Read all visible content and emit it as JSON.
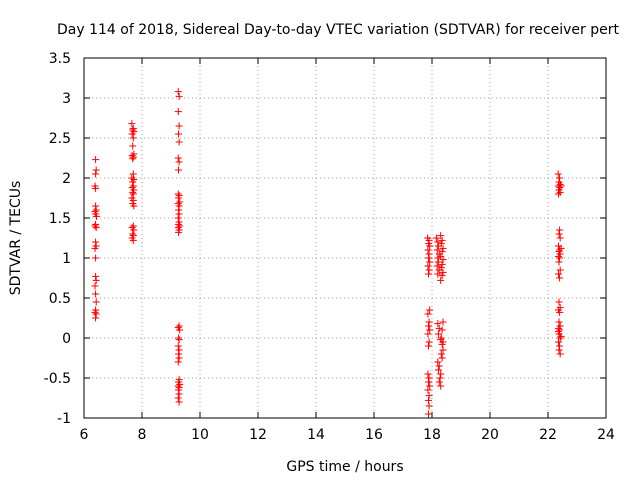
{
  "chart_data": {
    "type": "scatter",
    "title": "Day 114 of 2018, Sidereal Day-to-day VTEC variation (SDTVAR) for receiver pert",
    "xlabel": "GPS time / hours",
    "ylabel": "SDTVAR / TECUs",
    "xlim": [
      6,
      24
    ],
    "ylim": [
      -1,
      3.5
    ],
    "xticks": [
      6,
      8,
      10,
      12,
      14,
      16,
      18,
      20,
      22,
      24
    ],
    "yticks": [
      -1,
      -0.5,
      0,
      0.5,
      1,
      1.5,
      2,
      2.5,
      3,
      3.5
    ],
    "xtick_labels": [
      "6",
      "8",
      "10",
      "12",
      "14",
      "16",
      "18",
      "20",
      "22",
      "24"
    ],
    "ytick_labels": [
      "-1",
      "-0.5",
      "0",
      "0.5",
      "1",
      "1.5",
      "2",
      "2.5",
      "3",
      "3.5"
    ],
    "marker": "plus",
    "color": "#ff0000",
    "series": [
      {
        "name": "SDTVAR",
        "points": [
          [
            6.4,
            2.23
          ],
          [
            6.42,
            2.1
          ],
          [
            6.4,
            2.05
          ],
          [
            6.38,
            1.9
          ],
          [
            6.4,
            1.87
          ],
          [
            6.4,
            1.65
          ],
          [
            6.42,
            1.6
          ],
          [
            6.38,
            1.58
          ],
          [
            6.4,
            1.55
          ],
          [
            6.43,
            1.52
          ],
          [
            6.4,
            1.42
          ],
          [
            6.38,
            1.4
          ],
          [
            6.42,
            1.38
          ],
          [
            6.4,
            1.2
          ],
          [
            6.42,
            1.15
          ],
          [
            6.38,
            1.12
          ],
          [
            6.4,
            1.0
          ],
          [
            6.4,
            0.77
          ],
          [
            6.42,
            0.72
          ],
          [
            6.38,
            0.65
          ],
          [
            6.4,
            0.55
          ],
          [
            6.42,
            0.45
          ],
          [
            6.4,
            0.35
          ],
          [
            6.38,
            0.32
          ],
          [
            6.42,
            0.3
          ],
          [
            6.4,
            0.25
          ],
          [
            7.65,
            2.68
          ],
          [
            7.7,
            2.62
          ],
          [
            7.68,
            2.6
          ],
          [
            7.72,
            2.58
          ],
          [
            7.66,
            2.55
          ],
          [
            7.7,
            2.5
          ],
          [
            7.68,
            2.4
          ],
          [
            7.72,
            2.3
          ],
          [
            7.66,
            2.28
          ],
          [
            7.7,
            2.26
          ],
          [
            7.68,
            2.24
          ],
          [
            7.7,
            2.05
          ],
          [
            7.65,
            2.0
          ],
          [
            7.72,
            1.98
          ],
          [
            7.68,
            1.95
          ],
          [
            7.7,
            1.9
          ],
          [
            7.66,
            1.88
          ],
          [
            7.72,
            1.85
          ],
          [
            7.68,
            1.82
          ],
          [
            7.7,
            1.8
          ],
          [
            7.65,
            1.75
          ],
          [
            7.7,
            1.72
          ],
          [
            7.68,
            1.68
          ],
          [
            7.72,
            1.65
          ],
          [
            7.7,
            1.4
          ],
          [
            7.66,
            1.38
          ],
          [
            7.72,
            1.35
          ],
          [
            7.68,
            1.3
          ],
          [
            7.7,
            1.28
          ],
          [
            7.66,
            1.25
          ],
          [
            7.7,
            1.22
          ],
          [
            9.25,
            3.08
          ],
          [
            9.28,
            3.02
          ],
          [
            9.25,
            2.83
          ],
          [
            9.28,
            2.65
          ],
          [
            9.26,
            2.55
          ],
          [
            9.28,
            2.45
          ],
          [
            9.25,
            2.25
          ],
          [
            9.28,
            2.2
          ],
          [
            9.26,
            2.1
          ],
          [
            9.25,
            1.8
          ],
          [
            9.28,
            1.78
          ],
          [
            9.26,
            1.75
          ],
          [
            9.3,
            1.7
          ],
          [
            9.25,
            1.68
          ],
          [
            9.28,
            1.65
          ],
          [
            9.26,
            1.6
          ],
          [
            9.28,
            1.55
          ],
          [
            9.25,
            1.5
          ],
          [
            9.28,
            1.45
          ],
          [
            9.26,
            1.42
          ],
          [
            9.3,
            1.4
          ],
          [
            9.25,
            1.38
          ],
          [
            9.28,
            1.35
          ],
          [
            9.26,
            1.32
          ],
          [
            9.28,
            0.15
          ],
          [
            9.25,
            0.13
          ],
          [
            9.3,
            0.1
          ],
          [
            9.26,
            0.0
          ],
          [
            9.28,
            -0.02
          ],
          [
            9.25,
            -0.1
          ],
          [
            9.28,
            -0.15
          ],
          [
            9.26,
            -0.2
          ],
          [
            9.28,
            -0.25
          ],
          [
            9.25,
            -0.3
          ],
          [
            9.28,
            -0.52
          ],
          [
            9.26,
            -0.55
          ],
          [
            9.3,
            -0.58
          ],
          [
            9.25,
            -0.6
          ],
          [
            9.28,
            -0.62
          ],
          [
            9.26,
            -0.65
          ],
          [
            9.28,
            -0.7
          ],
          [
            9.25,
            -0.75
          ],
          [
            9.28,
            -0.8
          ],
          [
            17.85,
            1.25
          ],
          [
            17.9,
            1.22
          ],
          [
            17.88,
            1.18
          ],
          [
            17.92,
            1.15
          ],
          [
            17.86,
            1.1
          ],
          [
            17.9,
            1.05
          ],
          [
            17.88,
            1.0
          ],
          [
            17.92,
            0.95
          ],
          [
            17.86,
            0.9
          ],
          [
            17.9,
            0.85
          ],
          [
            17.88,
            0.8
          ],
          [
            17.92,
            0.35
          ],
          [
            17.86,
            0.3
          ],
          [
            17.9,
            0.2
          ],
          [
            17.88,
            0.15
          ],
          [
            17.92,
            0.1
          ],
          [
            17.86,
            0.05
          ],
          [
            17.9,
            -0.05
          ],
          [
            17.88,
            -0.1
          ],
          [
            17.86,
            -0.45
          ],
          [
            17.9,
            -0.5
          ],
          [
            17.88,
            -0.55
          ],
          [
            17.92,
            -0.6
          ],
          [
            17.86,
            -0.65
          ],
          [
            17.9,
            -0.72
          ],
          [
            17.88,
            -0.78
          ],
          [
            17.9,
            -0.85
          ],
          [
            17.88,
            -0.95
          ],
          [
            18.15,
            1.25
          ],
          [
            18.2,
            1.2
          ],
          [
            18.22,
            1.15
          ],
          [
            18.18,
            1.1
          ],
          [
            18.25,
            1.05
          ],
          [
            18.2,
            1.0
          ],
          [
            18.22,
            0.95
          ],
          [
            18.18,
            0.9
          ],
          [
            18.25,
            0.85
          ],
          [
            18.2,
            0.8
          ],
          [
            18.3,
            1.28
          ],
          [
            18.35,
            1.22
          ],
          [
            18.32,
            1.18
          ],
          [
            18.38,
            1.12
          ],
          [
            18.35,
            1.08
          ],
          [
            18.3,
            1.02
          ],
          [
            18.38,
            0.98
          ],
          [
            18.35,
            0.92
          ],
          [
            18.32,
            0.88
          ],
          [
            18.38,
            0.82
          ],
          [
            18.35,
            0.78
          ],
          [
            18.3,
            0.72
          ],
          [
            18.2,
            0.18
          ],
          [
            18.25,
            0.12
          ],
          [
            18.22,
            0.05
          ],
          [
            18.3,
            -0.02
          ],
          [
            18.35,
            -0.08
          ],
          [
            18.38,
            -0.15
          ],
          [
            18.32,
            -0.2
          ],
          [
            18.35,
            -0.25
          ],
          [
            18.2,
            -0.3
          ],
          [
            18.25,
            -0.35
          ],
          [
            18.22,
            -0.4
          ],
          [
            18.3,
            -0.45
          ],
          [
            18.28,
            -0.5
          ],
          [
            18.25,
            -0.55
          ],
          [
            18.3,
            -0.6
          ],
          [
            18.38,
            0.2
          ],
          [
            18.35,
            0.1
          ],
          [
            18.32,
            0.0
          ],
          [
            18.38,
            -0.05
          ],
          [
            22.35,
            2.05
          ],
          [
            22.4,
            2.0
          ],
          [
            22.38,
            1.95
          ],
          [
            22.42,
            1.92
          ],
          [
            22.36,
            1.9
          ],
          [
            22.4,
            1.88
          ],
          [
            22.38,
            1.85
          ],
          [
            22.42,
            1.82
          ],
          [
            22.36,
            1.8
          ],
          [
            22.4,
            1.35
          ],
          [
            22.38,
            1.3
          ],
          [
            22.42,
            1.25
          ],
          [
            22.36,
            1.15
          ],
          [
            22.4,
            1.1
          ],
          [
            22.38,
            1.08
          ],
          [
            22.42,
            1.05
          ],
          [
            22.36,
            1.02
          ],
          [
            22.4,
            1.0
          ],
          [
            22.38,
            0.95
          ],
          [
            22.42,
            0.85
          ],
          [
            22.36,
            0.8
          ],
          [
            22.4,
            0.75
          ],
          [
            22.38,
            0.45
          ],
          [
            22.42,
            0.38
          ],
          [
            22.36,
            0.35
          ],
          [
            22.4,
            0.32
          ],
          [
            22.38,
            0.2
          ],
          [
            22.42,
            0.15
          ],
          [
            22.36,
            0.12
          ],
          [
            22.4,
            0.1
          ],
          [
            22.38,
            0.05
          ],
          [
            22.42,
            0.0
          ],
          [
            22.36,
            -0.05
          ],
          [
            22.4,
            -0.1
          ],
          [
            22.38,
            -0.15
          ],
          [
            22.42,
            -0.2
          ],
          [
            22.36,
            0.08
          ],
          [
            22.45,
            0.02
          ],
          [
            22.45,
            1.12
          ],
          [
            22.45,
            1.9
          ]
        ]
      }
    ]
  }
}
